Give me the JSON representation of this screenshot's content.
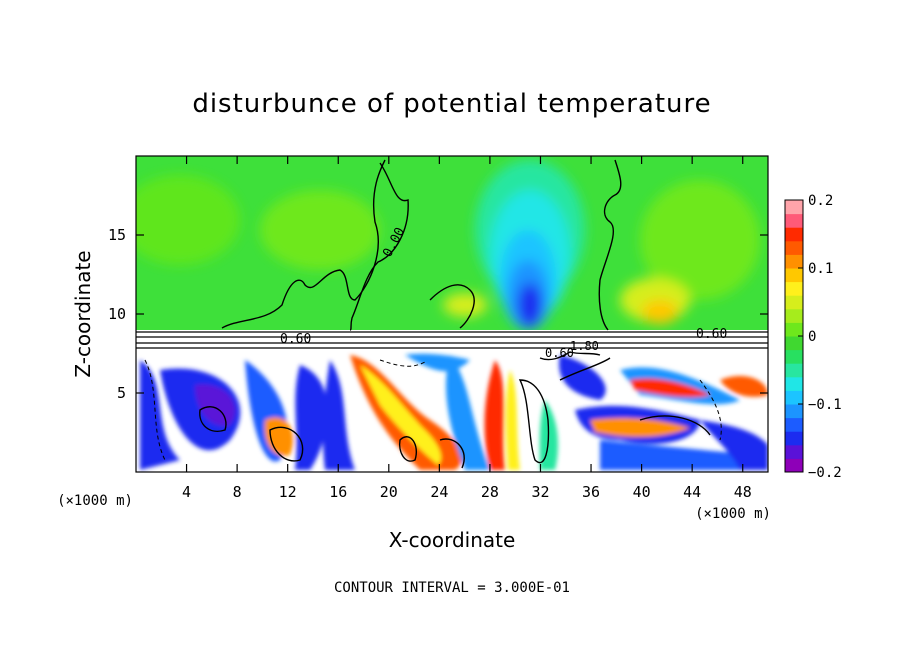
{
  "chart_data": {
    "type": "heatmap",
    "title": "disturbunce of potential temperature",
    "xlabel": "X-coordinate",
    "ylabel": "Z-coordinate",
    "x_unit_left": "(×1000 m)",
    "x_unit_right": "(×1000 m)",
    "xlim": [
      0,
      50
    ],
    "ylim": [
      0,
      20
    ],
    "x_ticks": [
      "4",
      "8",
      "12",
      "16",
      "20",
      "24",
      "28",
      "32",
      "36",
      "40",
      "44",
      "48"
    ],
    "x_tick_values": [
      4,
      8,
      12,
      16,
      20,
      24,
      28,
      32,
      36,
      40,
      44,
      48
    ],
    "y_ticks": [
      "5",
      "10",
      "15"
    ],
    "y_tick_values": [
      5,
      10,
      15
    ],
    "colorbar": {
      "range": [
        -0.2,
        0.2
      ],
      "ticks": [
        "0.2",
        "0.1",
        "0",
        "−0.1",
        "−0.2"
      ],
      "tick_values": [
        0.2,
        0.1,
        0,
        -0.1,
        -0.2
      ],
      "colors": [
        "#8e00b8",
        "#5a12d8",
        "#1c2cf0",
        "#1c5cff",
        "#1c94ff",
        "#1cc4ff",
        "#20e6e6",
        "#28e6a0",
        "#28e060",
        "#40d830",
        "#6ee81c",
        "#a6ec1c",
        "#d6ee1c",
        "#fff01c",
        "#ffc800",
        "#ff9000",
        "#ff5a00",
        "#ff2a00",
        "#ff5a78",
        "#ffa4aa"
      ]
    },
    "contour_labels": [
      "0.00",
      "0.60",
      "0.60",
      "1.80",
      "0.60"
    ],
    "contour_interval_text": "CONTOUR INTERVAL = 3.000E-01"
  }
}
